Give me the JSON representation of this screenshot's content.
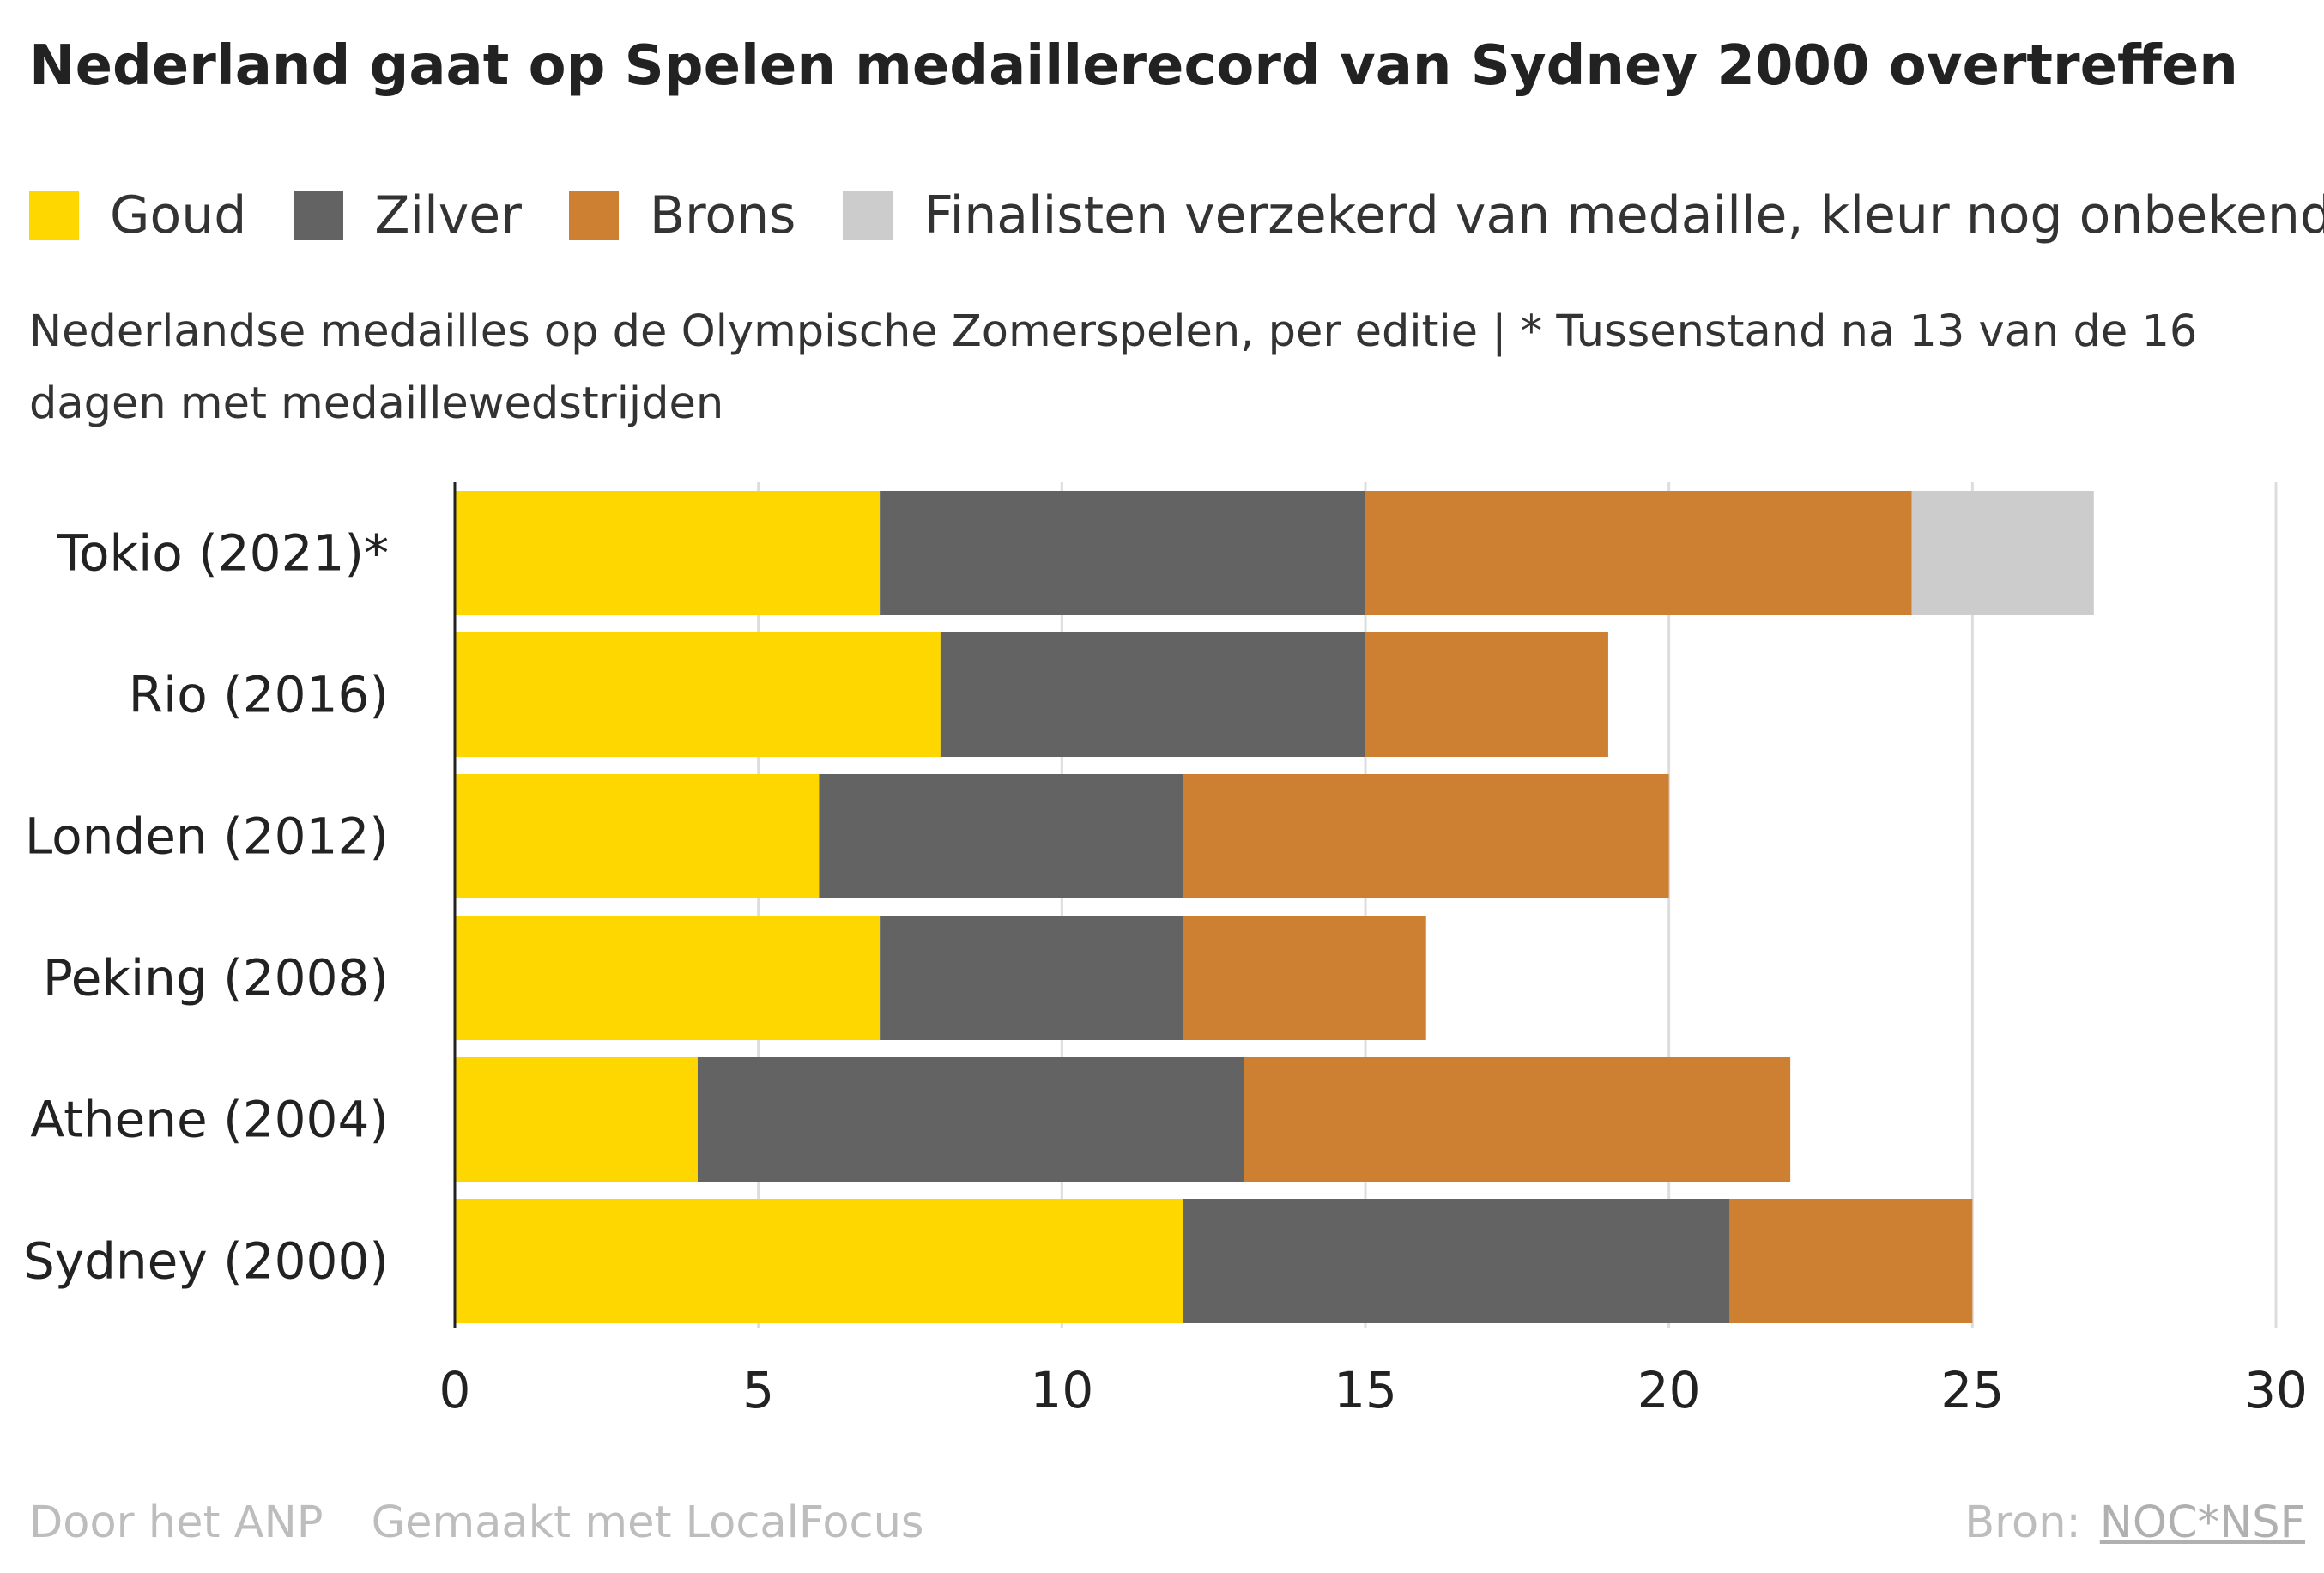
{
  "title": "Nederland gaat op Spelen medaillerecord van Sydney 2000 overtreffen",
  "subtitle": "Nederlandse medailles op de Olympische Zomerspelen, per editie | * Tussenstand na 13 van de 16 dagen met medaillewedstrijden",
  "footer": {
    "author": "Door het ANP",
    "tool": "Gemaakt met LocalFocus",
    "source_label": "Bron:",
    "source_name": "NOC*NSF"
  },
  "colors": {
    "gold": "#FFD700",
    "silver": "#636363",
    "bronze": "#CD7F32",
    "pending": "#CCCCCC",
    "grid": "#DDDDDD",
    "axis": "#222222"
  },
  "chart_data": {
    "type": "bar",
    "orientation": "horizontal",
    "stacked": true,
    "categories": [
      "Tokio (2021)*",
      "Rio (2016)",
      "Londen (2012)",
      "Peking (2008)",
      "Athene (2004)",
      "Sydney (2000)"
    ],
    "series": [
      {
        "name": "Goud",
        "color": "#FFD700",
        "values": [
          7,
          8,
          6,
          7,
          4,
          12
        ]
      },
      {
        "name": "Zilver",
        "color": "#636363",
        "values": [
          8,
          7,
          6,
          5,
          9,
          9
        ]
      },
      {
        "name": "Brons",
        "color": "#CD7F32",
        "values": [
          9,
          4,
          8,
          4,
          9,
          4
        ]
      },
      {
        "name": "Finalisten verzekerd van medaille, kleur nog onbekend",
        "color": "#CCCCCC",
        "values": [
          3,
          0,
          0,
          0,
          0,
          0
        ]
      }
    ],
    "xlim": [
      0,
      30
    ],
    "xticks": [
      0,
      5,
      10,
      15,
      20,
      25,
      30
    ],
    "grid": true,
    "legend_position": "top"
  }
}
